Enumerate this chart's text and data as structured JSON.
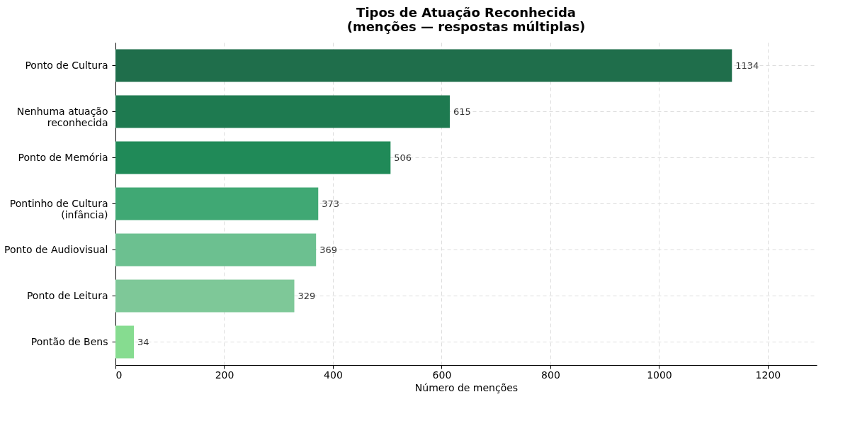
{
  "chart_data": {
    "type": "bar",
    "orientation": "horizontal",
    "title": "Tipos de Atuação Reconhecida\n(menções — respostas múltiplas)",
    "xlabel": "Número de menções",
    "categories": [
      "Ponto de Cultura",
      "Nenhuma atuação\nreconhecida",
      "Ponto de Memória",
      "Pontinho de Cultura\n(infância)",
      "Ponto de Audiovisual",
      "Ponto de Leitura",
      "Pontão de Bens"
    ],
    "values": [
      1134,
      615,
      506,
      373,
      369,
      329,
      34
    ],
    "colors": [
      "#1f6e4b",
      "#1e7a50",
      "#208a58",
      "#40a874",
      "#6cc090",
      "#7ec898",
      "#86dc90"
    ],
    "xlim": [
      0,
      1290
    ],
    "xticks": [
      0,
      200,
      400,
      600,
      800,
      1000,
      1200
    ],
    "data_labels": true,
    "grid": true
  }
}
